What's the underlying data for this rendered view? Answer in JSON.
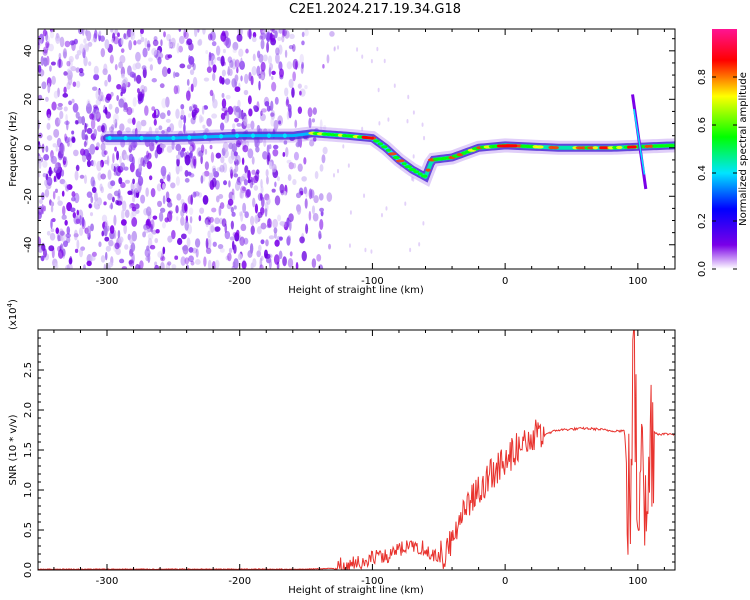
{
  "figure": {
    "title": "C2E1.2024.217.19.34.G18"
  },
  "chart_data": [
    {
      "type": "heatmap",
      "title": "C2E1.2024.217.19.34.G18",
      "xlabel": "Height of straight line (km)",
      "ylabel": "Frequency (Hz)",
      "xlim": [
        -352,
        128
      ],
      "ylim": [
        -50,
        49
      ],
      "x_ticks": [
        -300,
        -200,
        -100,
        0,
        100
      ],
      "y_ticks": [
        -40,
        -20,
        0,
        20,
        40
      ],
      "x_tick_labels": [
        "-300",
        "-200",
        "-100",
        "0",
        "100"
      ],
      "y_tick_labels": [
        "-40",
        "-20",
        "0",
        "20",
        "40"
      ],
      "colorbar": {
        "label": "Normalized spectral amplitude",
        "range": [
          0,
          1
        ],
        "ticks": [
          0.0,
          0.2,
          0.4,
          0.6,
          0.8
        ],
        "tick_labels": [
          "0.0",
          "0.2",
          "0.4",
          "0.6",
          "0.8"
        ],
        "colormap": [
          "#ffffff",
          "#7a00e8",
          "#0000ff",
          "#00e5ff",
          "#00ff00",
          "#ffff00",
          "#ff0000",
          "#ff1493"
        ]
      },
      "ridge": [
        {
          "x": -300,
          "y": 4
        },
        {
          "x": -250,
          "y": 4
        },
        {
          "x": -200,
          "y": 5
        },
        {
          "x": -160,
          "y": 5
        },
        {
          "x": -145,
          "y": 6
        },
        {
          "x": -120,
          "y": 5
        },
        {
          "x": -100,
          "y": 4
        },
        {
          "x": -90,
          "y": 0
        },
        {
          "x": -80,
          "y": -5
        },
        {
          "x": -70,
          "y": -9
        },
        {
          "x": -60,
          "y": -12
        },
        {
          "x": -55,
          "y": -5
        },
        {
          "x": -40,
          "y": -4
        },
        {
          "x": -30,
          "y": -2
        },
        {
          "x": -20,
          "y": 0
        },
        {
          "x": 0,
          "y": 1
        },
        {
          "x": 40,
          "y": 0
        },
        {
          "x": 80,
          "y": 0
        },
        {
          "x": 128,
          "y": 1
        }
      ],
      "spike_near_100": {
        "x": [
          96,
          106
        ],
        "y": [
          22,
          -17
        ]
      }
    },
    {
      "type": "line",
      "xlabel": "Height of straight line (km)",
      "ylabel": "SNR (10 * v/v)",
      "multiplier_label": "(x10",
      "multiplier_exp": "4",
      "multiplier_close": ")",
      "xlim": [
        -352,
        128
      ],
      "ylim": [
        0,
        3.0
      ],
      "x_ticks": [
        -300,
        -200,
        -100,
        0,
        100
      ],
      "y_ticks": [
        0.0,
        0.5,
        1.0,
        1.5,
        2.0,
        2.5
      ],
      "x_tick_labels": [
        "-300",
        "-200",
        "-100",
        "0",
        "100"
      ],
      "y_tick_labels": [
        "0.0",
        "0.5",
        "1.0",
        "1.5",
        "2.0",
        "2.5"
      ],
      "series": [
        {
          "color": "#e8332e",
          "x": [
            -352,
            -300,
            -250,
            -200,
            -150,
            -130,
            -120,
            -110,
            -100,
            -90,
            -80,
            -70,
            -60,
            -50,
            -45,
            -40,
            -35,
            -30,
            -25,
            -20,
            -10,
            0,
            10,
            20,
            30,
            40,
            50,
            60,
            70,
            80,
            90,
            94,
            97,
            100,
            103,
            106,
            110,
            115,
            128
          ],
          "values": [
            0.01,
            0.01,
            0.01,
            0.01,
            0.01,
            0.02,
            0.05,
            0.08,
            0.12,
            0.15,
            0.22,
            0.3,
            0.25,
            0.12,
            0.15,
            0.35,
            0.55,
            0.75,
            0.85,
            0.95,
            1.15,
            1.3,
            1.5,
            1.62,
            1.7,
            1.75,
            1.76,
            1.77,
            1.76,
            1.74,
            1.74,
            0.6,
            2.9,
            0.5,
            2.5,
            0.3,
            1.75,
            1.7,
            1.7
          ]
        }
      ]
    }
  ]
}
